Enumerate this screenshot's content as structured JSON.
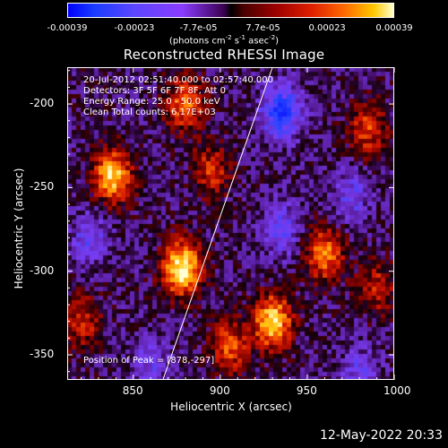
{
  "colorbar": {
    "tick_labels": [
      "-0.00039",
      "-0.00023",
      "-7.7e-05",
      "7.7e-05",
      "0.00023",
      "0.00039"
    ],
    "tick_values": [
      -0.00039,
      -0.00023,
      -7.7e-05,
      7.7e-05,
      0.00023,
      0.00039
    ],
    "range": [
      -0.00039,
      0.00039
    ],
    "unit_prefix": "(photons cm",
    "unit_exp1": "-2",
    "unit_mid1": " s",
    "unit_exp2": "-1",
    "unit_mid2": " asec",
    "unit_exp3": "-2",
    "unit_suffix": ")"
  },
  "chart_data": {
    "type": "heatmap",
    "title": "Reconstructed RHESSI Image",
    "xlabel": "Heliocentric X (arcsec)",
    "ylabel": "Heliocentric Y (arcsec)",
    "xlim": [
      812,
      1000
    ],
    "ylim": [
      -365,
      -178
    ],
    "x_ticks": [
      850,
      900,
      950,
      1000
    ],
    "y_ticks": [
      -200,
      -250,
      -300,
      -350
    ],
    "annotations": {
      "time_range": "20-Jul-2012 02:51:40.000 to 02:57:40.000",
      "detectors": "Detectors: 3F 5F 6F 7F 8F, Att 0",
      "energy_range": "Energy Range: 25.0 - 50.0 keV",
      "method_counts": "Clean    Total counts: 6.17E+03",
      "peak_position": "Position of Peak = [878,-297]"
    },
    "peak": [
      878,
      -297
    ],
    "limb_line": [
      [
        867,
        -365
      ],
      [
        930,
        -178
      ]
    ],
    "colormap": "blue-white-red",
    "colors": {
      "negative": "#1a3cff",
      "mid_negative": "#8a3cff",
      "background": "#5a1e9a",
      "positive_low": "#9c0000",
      "positive_mid": "#ff6a00",
      "positive_high": "#ffffd0"
    },
    "blobs": [
      {
        "x": 838,
        "y": -243,
        "strength": 0.85
      },
      {
        "x": 878,
        "y": -298,
        "strength": 1.0
      },
      {
        "x": 930,
        "y": -330,
        "strength": 0.9
      },
      {
        "x": 960,
        "y": -290,
        "strength": 0.65
      },
      {
        "x": 880,
        "y": -200,
        "strength": 0.6
      },
      {
        "x": 895,
        "y": -240,
        "strength": 0.45
      },
      {
        "x": 985,
        "y": -215,
        "strength": 0.5
      },
      {
        "x": 820,
        "y": -330,
        "strength": 0.45
      },
      {
        "x": 905,
        "y": -345,
        "strength": 0.55
      },
      {
        "x": 990,
        "y": -310,
        "strength": 0.4
      },
      {
        "x": 935,
        "y": -205,
        "strength": -0.7
      },
      {
        "x": 935,
        "y": -275,
        "strength": -0.4
      },
      {
        "x": 825,
        "y": -280,
        "strength": -0.35
      },
      {
        "x": 860,
        "y": -355,
        "strength": -0.3
      },
      {
        "x": 975,
        "y": -255,
        "strength": -0.35
      },
      {
        "x": 980,
        "y": -360,
        "strength": -0.3
      }
    ]
  },
  "footer": {
    "timestamp": "12-May-2022 20:33"
  }
}
